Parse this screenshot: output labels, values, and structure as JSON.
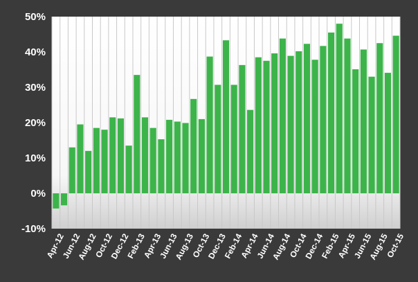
{
  "chart_data": {
    "type": "bar",
    "title": "",
    "xlabel": "",
    "ylabel": "",
    "ylim": [
      -10,
      50
    ],
    "grid": true,
    "colors": {
      "background": "#3a3a3a",
      "bar": "#3cb44a",
      "plot_top": "#ffffff",
      "plot_bottom": "#cfcfcf",
      "gridline": "#c8c8c8",
      "text": "#ffffff"
    },
    "yticks": [
      -10,
      0,
      10,
      20,
      30,
      40,
      50
    ],
    "ytick_labels": [
      "-10%",
      "0%",
      "10%",
      "20%",
      "30%",
      "40%",
      "50%"
    ],
    "categories": [
      "Apr-12",
      "May-12",
      "Jun-12",
      "Jul-12",
      "Aug-12",
      "Sep-12",
      "Oct-12",
      "Nov-12",
      "Dec-12",
      "Jan-13",
      "Feb-13",
      "Mar-13",
      "Apr-13",
      "May-13",
      "Jun-13",
      "Jul-13",
      "Aug-13",
      "Sep-13",
      "Oct-13",
      "Nov-13",
      "Dec-13",
      "Jan-14",
      "Feb-14",
      "Mar-14",
      "Apr-14",
      "May-14",
      "Jun-14",
      "Jul-14",
      "Aug-14",
      "Sep-14",
      "Oct-14",
      "Nov-14",
      "Dec-14",
      "Jan-15",
      "Feb-15",
      "Mar-15",
      "Apr-15",
      "May-15",
      "Jun-15",
      "Jul-15",
      "Aug-15",
      "Sep-15",
      "Oct-15"
    ],
    "values": [
      -4.3,
      -3.4,
      13.0,
      19.5,
      12.0,
      18.5,
      18.0,
      21.5,
      21.2,
      13.5,
      33.5,
      21.5,
      18.5,
      15.3,
      20.8,
      20.3,
      19.9,
      26.7,
      21.0,
      38.7,
      30.7,
      43.3,
      30.7,
      36.3,
      23.6,
      38.5,
      37.5,
      39.6,
      43.8,
      38.9,
      40.2,
      42.3,
      37.8,
      41.7,
      45.5,
      48.0,
      43.8,
      35.1,
      40.7,
      33.0,
      42.5,
      34.1,
      44.6
    ],
    "xtick_labels": [
      "Apr-12",
      "Jun-12",
      "Aug-12",
      "Oct-12",
      "Dec-12",
      "Feb-13",
      "Apr-13",
      "Jun-13",
      "Aug-13",
      "Oct-13",
      "Dec-13",
      "Feb-14",
      "Apr-14",
      "Jun-14",
      "Aug-14",
      "Oct-14",
      "Dec-14",
      "Feb-15",
      "Apr-15",
      "Jun-15",
      "Aug-15",
      "Oct-15"
    ]
  }
}
